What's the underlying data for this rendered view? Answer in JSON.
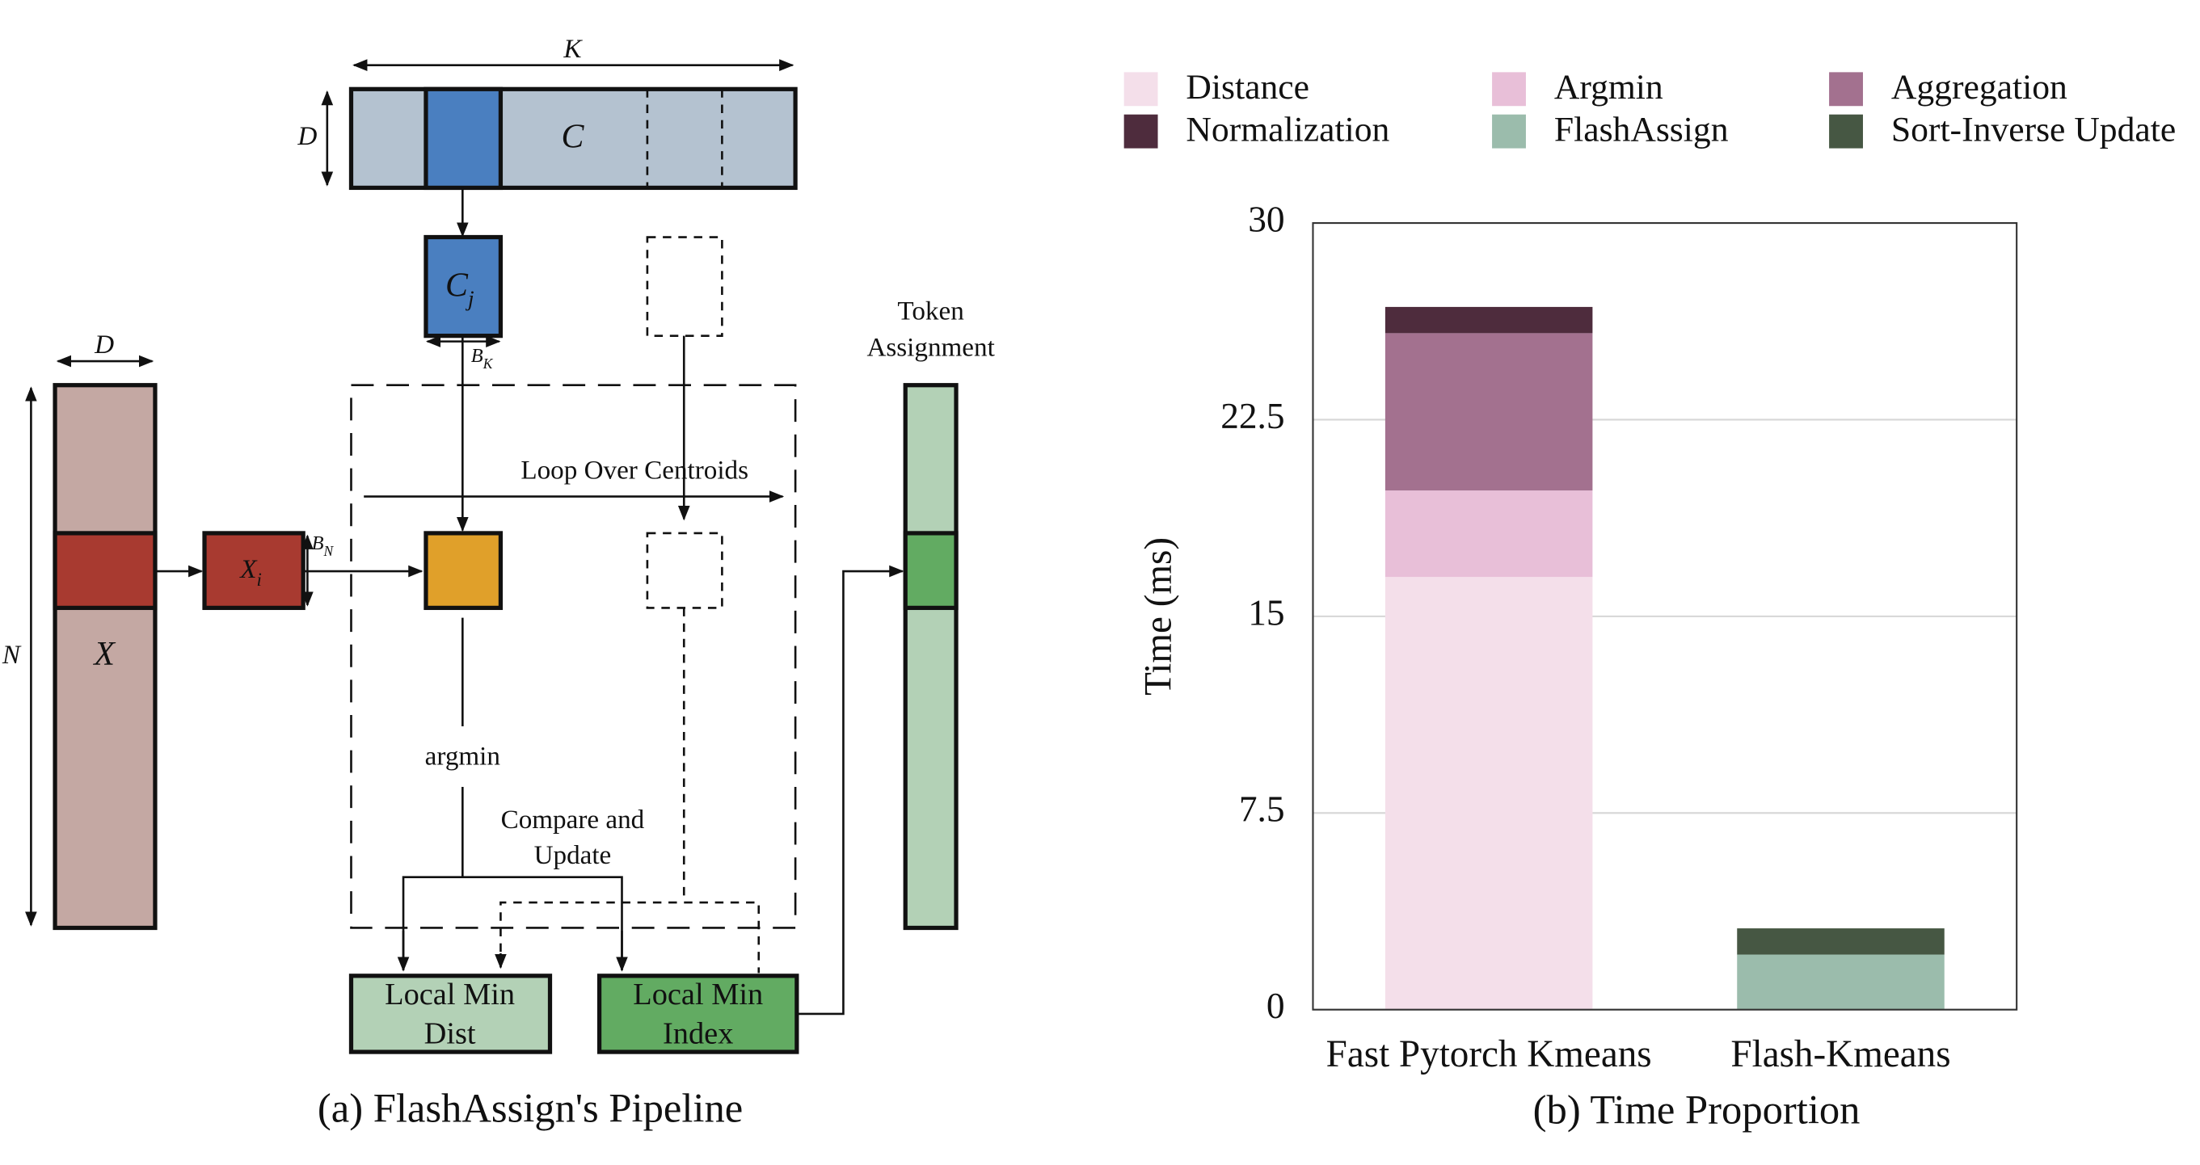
{
  "diagram": {
    "caption": "(a) FlashAssign's Pipeline",
    "centroids": {
      "label": "C",
      "width_label": "K",
      "dim_label": "D"
    },
    "centroid_block": {
      "base": "C",
      "sub": "j",
      "size_label": {
        "base": "B",
        "sub": "K"
      }
    },
    "tokens": {
      "label": "X",
      "dim_label": "D",
      "count_label": "N"
    },
    "token_block": {
      "base": "X",
      "sub": "i",
      "size_label": {
        "base": "B",
        "sub": "N"
      }
    },
    "loop_label": "Loop Over Centroids",
    "argmin_label": "argmin",
    "compare_label": [
      "Compare and",
      "Update"
    ],
    "token_assignment_label": [
      "Token",
      "Assignment"
    ],
    "local_min_dist": [
      "Local Min",
      "Dist"
    ],
    "local_min_index": [
      "Local Min",
      "Index"
    ]
  },
  "chart_data": {
    "type": "stacked_bar",
    "caption": "(b) Time Proportion",
    "y_label": "Time (ms)",
    "categories": [
      "Fast Pytorch Kmeans",
      "Flash-Kmeans"
    ],
    "series": [
      {
        "name": "Distance",
        "color": "#f4dfea",
        "values": [
          16.5,
          0
        ]
      },
      {
        "name": "Argmin",
        "color": "#e8bfd8",
        "values": [
          3.3,
          0
        ]
      },
      {
        "name": "Aggregation",
        "color": "#a3718f",
        "values": [
          6.0,
          0
        ]
      },
      {
        "name": "Normalization",
        "color": "#4e2c3d",
        "values": [
          1.0,
          0
        ]
      },
      {
        "name": "FlashAssign",
        "color": "#9bbcac",
        "values": [
          0,
          2.1
        ]
      },
      {
        "name": "Sort-Inverse Update",
        "color": "#465743",
        "values": [
          0,
          1.0
        ]
      }
    ],
    "ylim": [
      0,
      30
    ],
    "yticks": [
      0,
      7.5,
      15,
      22.5,
      30
    ],
    "grid": true,
    "legend": "top"
  }
}
